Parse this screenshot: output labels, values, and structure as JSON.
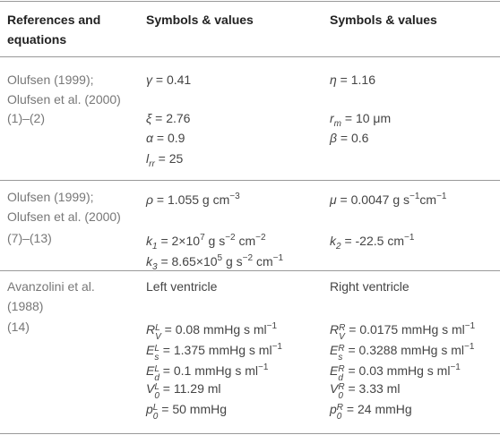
{
  "header": [
    "References and equations",
    "Symbols & values",
    "Symbols & values"
  ],
  "groups": [
    {
      "reference": "Olufsen (1999); Olufsen et al. (2000)",
      "equations": "(1)–(2)",
      "rows": [
        [
          [
            "γ",
            " = 0.41"
          ],
          [
            "η",
            " = 1.16"
          ]
        ],
        [
          [
            "ξ",
            " = 2.76"
          ],
          [
            "r",
            "m",
            " = 10 μm"
          ]
        ],
        [
          [
            "α",
            " = 0.9"
          ],
          [
            "β",
            " = 0.6"
          ]
        ],
        [
          [
            "l",
            "rr",
            " = 25"
          ]
        ]
      ]
    },
    {
      "reference": "Olufsen (1999); Olufsen et al. (2000)",
      "equations": "(7)–(13)",
      "rows": [
        [
          [
            "ρ",
            " = 1.055 g cm",
            "−3"
          ],
          [
            "μ",
            " = 0.0047 g s",
            "−1",
            "cm",
            "−1"
          ]
        ],
        [
          [
            "k",
            "1",
            " = 2×10",
            "7",
            " g s",
            "−2",
            " cm",
            "−2"
          ],
          [
            "k",
            "2",
            " = -22.5 cm",
            "−1"
          ]
        ],
        [
          [
            "k",
            "3",
            " = 8.65×10",
            "5",
            " g s",
            "−2",
            " cm",
            "−1"
          ]
        ]
      ]
    },
    {
      "reference": "Avanzolini et al. (1988)",
      "equations": "(14)",
      "rows": [
        [
          [
            "Left ventricle"
          ],
          [
            "Right ventricle"
          ]
        ],
        [
          [
            "R",
            "L",
            "V",
            " = 0.08 mmHg s ml",
            "−1"
          ],
          [
            "R",
            "R",
            "V",
            " = 0.0175 mmHg s ml",
            "−1"
          ]
        ],
        [
          [
            "E",
            "L",
            "s",
            " = 1.375 mmHg s ml",
            "−1"
          ],
          [
            "E",
            "R",
            "s",
            " = 0.3288 mmHg s ml",
            "−1"
          ]
        ],
        [
          [
            "E",
            "L",
            "d",
            " = 0.1 mmHg s ml",
            "−1"
          ],
          [
            "E",
            "R",
            "d",
            " = 0.03 mmHg s ml",
            "−1"
          ]
        ],
        [
          [
            "V",
            "L",
            "0",
            " = 11.29 ml"
          ],
          [
            "V",
            "R",
            "0",
            " = 3.33 ml"
          ]
        ],
        [
          [
            "p",
            "L",
            "0",
            " = 50 mmHg"
          ],
          [
            "p",
            "R",
            "0",
            " = 24 mmHg"
          ]
        ]
      ]
    }
  ]
}
